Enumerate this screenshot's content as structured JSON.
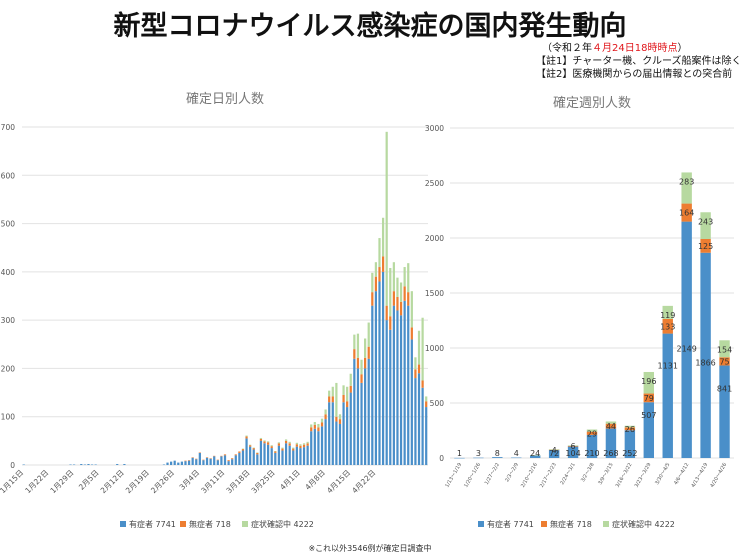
{
  "title": "新型コロナウイルス感染症の国内発生動向",
  "notes": {
    "date_prefix": "（令和２年",
    "date_highlight": "４月24日18時時点",
    "date_suffix": "）",
    "note1": "【註1】チャーター機、クルーズ船案件は除く",
    "note2": "【註2】医療機関からの届出情報との突合前"
  },
  "footnote": "※これ以外3546例が確定日調査中",
  "colors": {
    "symptomatic": "#4a8fc9",
    "asymptomatic": "#ed7d31",
    "confirming": "#b7d9a0",
    "grid": "#e2e2e2",
    "axis_text": "#555555"
  },
  "chart_data": [
    {
      "type": "bar",
      "stacked": true,
      "title": "確定日別人数",
      "ylim": [
        0,
        700
      ],
      "yticks": [
        0,
        100,
        200,
        300,
        400,
        500,
        600,
        700
      ],
      "x_tick_labels": [
        "1月15日",
        "1月22日",
        "1月29日",
        "2月5日",
        "2月12日",
        "2月19日",
        "2月26日",
        "3月4日",
        "3月11日",
        "3月18日",
        "3月25日",
        "4月1日",
        "4月8日",
        "4月15日",
        "4月22日"
      ],
      "legend_position": "bottom",
      "series": [
        {
          "name": "有症者 7741",
          "values": [
            1,
            0,
            0,
            0,
            0,
            0,
            0,
            0,
            0,
            0,
            0,
            0,
            0,
            1,
            1,
            0,
            2,
            1,
            2,
            1,
            1,
            0,
            0,
            0,
            0,
            0,
            2,
            0,
            2,
            0,
            0,
            0,
            0,
            0,
            0,
            0,
            0,
            0,
            0,
            1,
            5,
            7,
            9,
            5,
            7,
            8,
            9,
            15,
            12,
            25,
            10,
            15,
            13,
            18,
            10,
            18,
            20,
            8,
            12,
            20,
            25,
            30,
            55,
            38,
            32,
            22,
            50,
            45,
            42,
            35,
            25,
            40,
            30,
            45,
            40,
            30,
            38,
            35,
            37,
            40,
            70,
            75,
            70,
            80,
            95,
            130,
            130,
            90,
            85,
            130,
            120,
            150,
            220,
            200,
            170,
            200,
            220,
            330,
            360,
            380,
            400,
            300,
            280,
            330,
            320,
            310,
            340,
            330,
            260,
            180,
            190,
            160,
            120
          ]
        },
        {
          "name": "無症者 718",
          "values": [
            0,
            0,
            0,
            0,
            0,
            0,
            0,
            0,
            0,
            0,
            0,
            0,
            0,
            0,
            0,
            0,
            0,
            0,
            0,
            0,
            0,
            0,
            0,
            0,
            0,
            0,
            0,
            0,
            0,
            0,
            0,
            0,
            0,
            0,
            0,
            0,
            0,
            0,
            0,
            0,
            0,
            0,
            0,
            0,
            0,
            1,
            1,
            1,
            1,
            1,
            1,
            1,
            1,
            1,
            1,
            1,
            2,
            2,
            2,
            2,
            3,
            3,
            4,
            3,
            3,
            3,
            4,
            4,
            5,
            4,
            3,
            5,
            4,
            5,
            5,
            4,
            5,
            5,
            5,
            5,
            8,
            8,
            8,
            8,
            10,
            12,
            12,
            10,
            10,
            15,
            12,
            14,
            20,
            22,
            18,
            22,
            25,
            28,
            30,
            30,
            32,
            30,
            28,
            30,
            28,
            28,
            30,
            28,
            25,
            18,
            18,
            15,
            12
          ]
        },
        {
          "name": "症状確認中 4222",
          "values": [
            0,
            0,
            0,
            0,
            0,
            0,
            0,
            0,
            0,
            0,
            0,
            0,
            0,
            0,
            0,
            0,
            0,
            0,
            0,
            0,
            0,
            0,
            0,
            0,
            0,
            0,
            0,
            0,
            0,
            0,
            0,
            0,
            0,
            0,
            0,
            0,
            0,
            0,
            0,
            0,
            0,
            0,
            0,
            0,
            0,
            0,
            0,
            0,
            0,
            0,
            0,
            0,
            0,
            0,
            0,
            0,
            0,
            0,
            0,
            0,
            0,
            1,
            2,
            1,
            1,
            1,
            2,
            2,
            2,
            2,
            1,
            2,
            2,
            3,
            3,
            2,
            3,
            3,
            3,
            3,
            6,
            6,
            7,
            8,
            10,
            12,
            20,
            70,
            10,
            20,
            30,
            25,
            30,
            50,
            30,
            40,
            50,
            40,
            30,
            60,
            80,
            360,
            100,
            60,
            40,
            40,
            40,
            60,
            75,
            25,
            70,
            130,
            10
          ]
        }
      ]
    },
    {
      "type": "bar",
      "stacked": true,
      "title": "確定週別人数",
      "ylim": [
        0,
        3000
      ],
      "yticks": [
        0,
        500,
        1000,
        1500,
        2000,
        2500,
        3000
      ],
      "categories": [
        "1/13〜1/19",
        "1/20〜1/26",
        "1/27〜2/2",
        "2/3〜2/9",
        "2/10〜2/16",
        "2/17〜2/23",
        "2/24〜3/1",
        "3/2〜3/8",
        "3/9〜3/15",
        "3/16〜3/22",
        "3/23〜3/29",
        "3/30〜4/5",
        "4/6〜4/12",
        "4/13〜4/19",
        "4/20〜4/26"
      ],
      "legend_position": "bottom",
      "series": [
        {
          "name": "有症者 7741",
          "values": [
            1,
            3,
            8,
            4,
            24,
            72,
            104,
            210,
            268,
            252,
            507,
            1131,
            2149,
            1866,
            841
          ],
          "labels": [
            "1",
            "3",
            "8",
            "4",
            "24",
            "72",
            "104",
            "210",
            "268",
            "252",
            "507",
            "1131",
            "2149",
            "1866",
            "841"
          ]
        },
        {
          "name": "無症者 718",
          "values": [
            0,
            0,
            0,
            0,
            0,
            4,
            6,
            29,
            44,
            26,
            79,
            133,
            164,
            125,
            75
          ],
          "labels": [
            "",
            "",
            "",
            "",
            "",
            "4",
            "6",
            "29",
            "44",
            "26",
            "79",
            "133",
            "164",
            "125",
            "75"
          ]
        },
        {
          "name": "症状確認中 4222",
          "values": [
            0,
            0,
            0,
            0,
            2,
            3,
            5,
            20,
            20,
            15,
            196,
            119,
            283,
            243,
            154
          ],
          "labels": [
            "",
            "",
            "",
            "",
            "",
            "",
            "",
            "",
            "",
            "",
            "196",
            "119",
            "283",
            "243",
            "154"
          ]
        }
      ]
    }
  ]
}
